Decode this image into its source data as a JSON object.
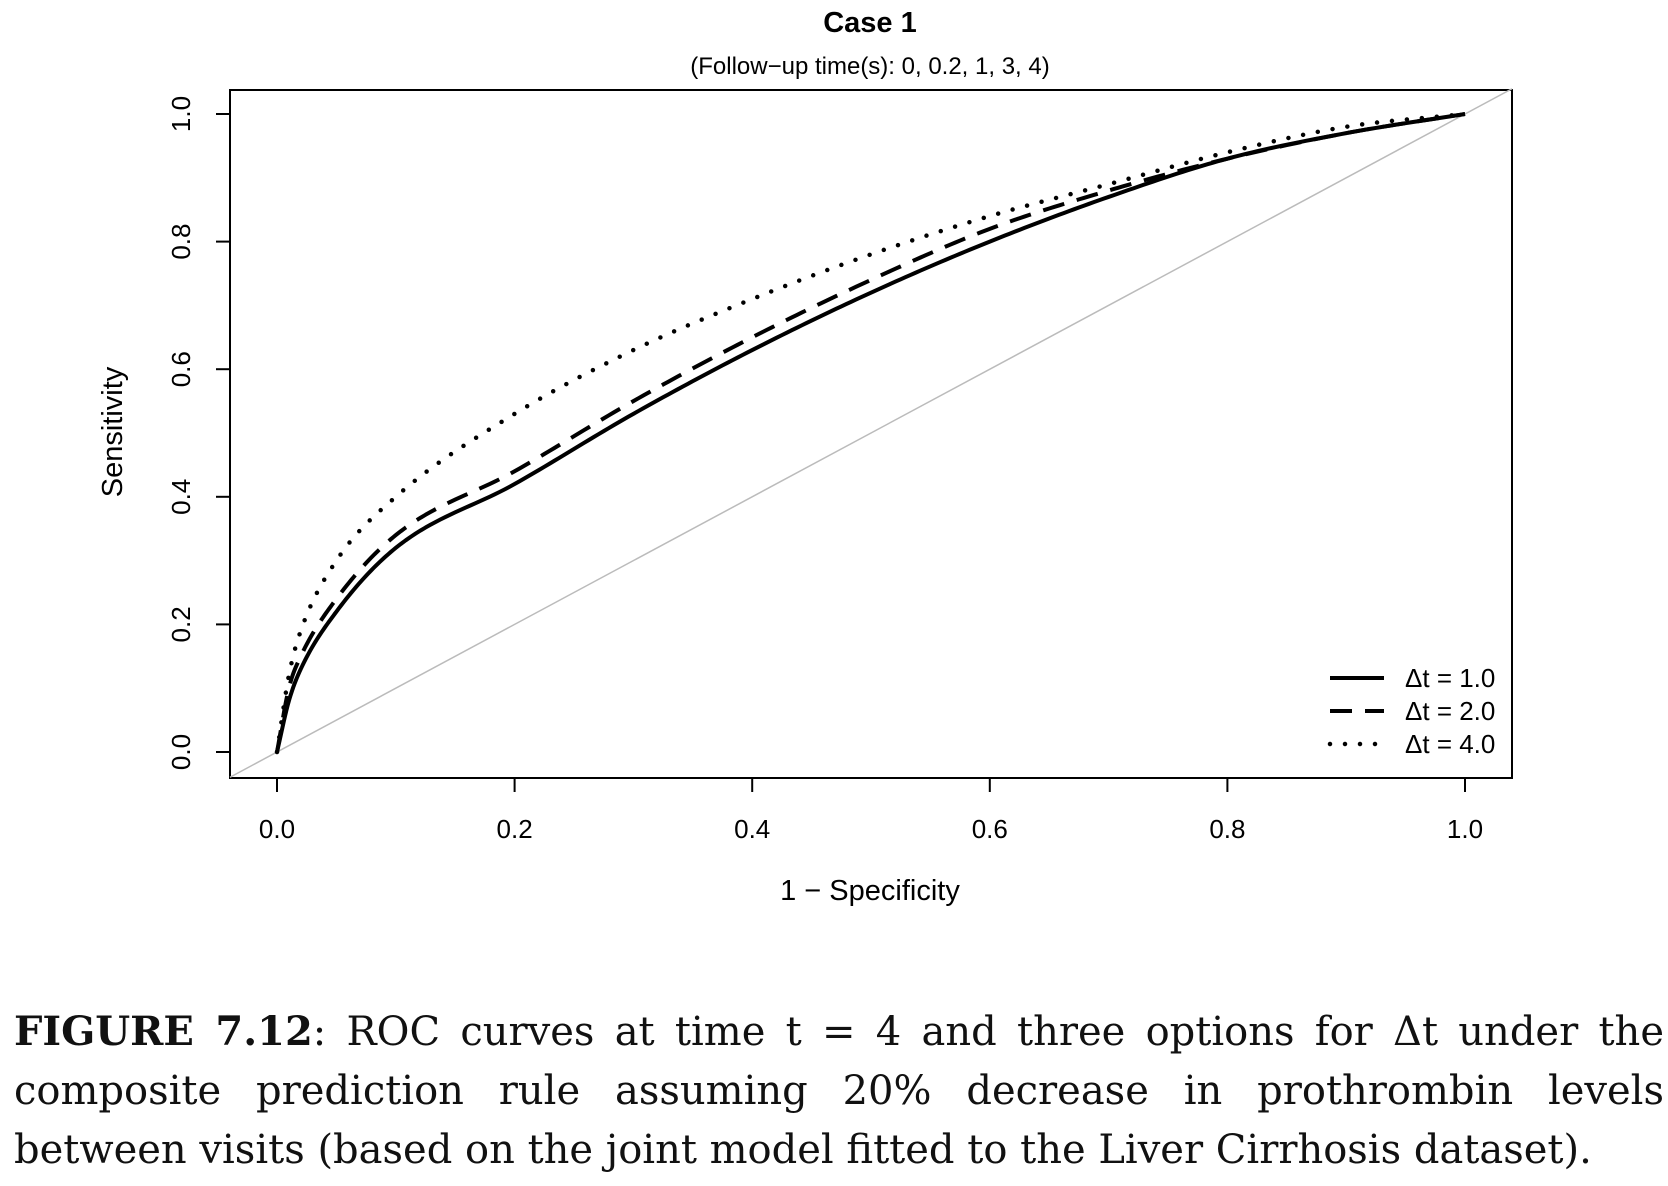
{
  "chart_data": {
    "type": "line",
    "title": "Case 1",
    "subtitle": "(Follow−up time(s): 0, 0.2, 1, 3, 4)",
    "xlabel": "1 − Specificity",
    "ylabel": "Sensitivity",
    "xlim": [
      0,
      1
    ],
    "ylim": [
      0,
      1
    ],
    "x_ticks": [
      "0.0",
      "0.2",
      "0.4",
      "0.6",
      "0.8",
      "1.0"
    ],
    "y_ticks": [
      "0.0",
      "0.2",
      "0.4",
      "0.6",
      "0.8",
      "1.0"
    ],
    "grid": false,
    "legend_position": "bottom-right",
    "reference_line": {
      "x": [
        0,
        1
      ],
      "y": [
        0,
        1
      ],
      "color": "#bbbbbb"
    },
    "x": [
      0,
      0.01,
      0.02,
      0.05,
      0.1,
      0.2,
      0.3,
      0.4,
      0.5,
      0.6,
      0.7,
      0.8,
      0.9,
      1.0
    ],
    "series": [
      {
        "name": "Δt = 1.0",
        "line_style": "solid",
        "color": "#000000",
        "values": [
          0,
          0.08,
          0.13,
          0.22,
          0.32,
          0.42,
          0.53,
          0.63,
          0.72,
          0.8,
          0.87,
          0.93,
          0.97,
          1.0
        ]
      },
      {
        "name": "Δt = 2.0",
        "line_style": "dashed",
        "color": "#000000",
        "values": [
          0,
          0.1,
          0.15,
          0.24,
          0.34,
          0.44,
          0.55,
          0.65,
          0.74,
          0.82,
          0.88,
          0.93,
          0.97,
          1.0
        ]
      },
      {
        "name": "Δt = 4.0",
        "line_style": "dotted",
        "color": "#000000",
        "values": [
          0,
          0.12,
          0.19,
          0.3,
          0.4,
          0.53,
          0.63,
          0.71,
          0.78,
          0.84,
          0.89,
          0.94,
          0.98,
          1.0
        ]
      }
    ]
  },
  "caption": {
    "label": "FIGURE 7.12",
    "text": ": ROC curves at time t = 4 and three options for Δt under the composite prediction rule assuming 20% decrease in prothrombin levels between visits (based on the joint model fitted to the Liver Cirrhosis dataset)."
  }
}
